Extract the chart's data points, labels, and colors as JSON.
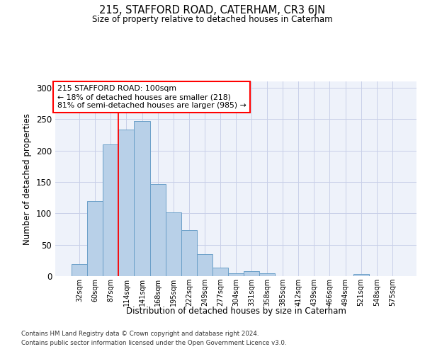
{
  "title": "215, STAFFORD ROAD, CATERHAM, CR3 6JN",
  "subtitle": "Size of property relative to detached houses in Caterham",
  "xlabel": "Distribution of detached houses by size in Caterham",
  "ylabel": "Number of detached properties",
  "bar_labels": [
    "32sqm",
    "60sqm",
    "87sqm",
    "114sqm",
    "141sqm",
    "168sqm",
    "195sqm",
    "222sqm",
    "249sqm",
    "277sqm",
    "304sqm",
    "331sqm",
    "358sqm",
    "385sqm",
    "412sqm",
    "439sqm",
    "466sqm",
    "494sqm",
    "521sqm",
    "548sqm",
    "575sqm"
  ],
  "bar_values": [
    19,
    120,
    210,
    233,
    247,
    147,
    101,
    73,
    35,
    14,
    5,
    8,
    4,
    0,
    0,
    0,
    0,
    0,
    3,
    0,
    0
  ],
  "bar_color": "#b8d0e8",
  "bar_edgecolor": "#6a9fc8",
  "background_color": "#eef2fa",
  "grid_color": "#c8cfe8",
  "ylim": [
    0,
    310
  ],
  "yticks": [
    0,
    50,
    100,
    150,
    200,
    250,
    300
  ],
  "annotation_text": "215 STAFFORD ROAD: 100sqm\n← 18% of detached houses are smaller (218)\n81% of semi-detached houses are larger (985) →",
  "vline_x_index": 2.5,
  "footer_line1": "Contains HM Land Registry data © Crown copyright and database right 2024.",
  "footer_line2": "Contains public sector information licensed under the Open Government Licence v3.0."
}
